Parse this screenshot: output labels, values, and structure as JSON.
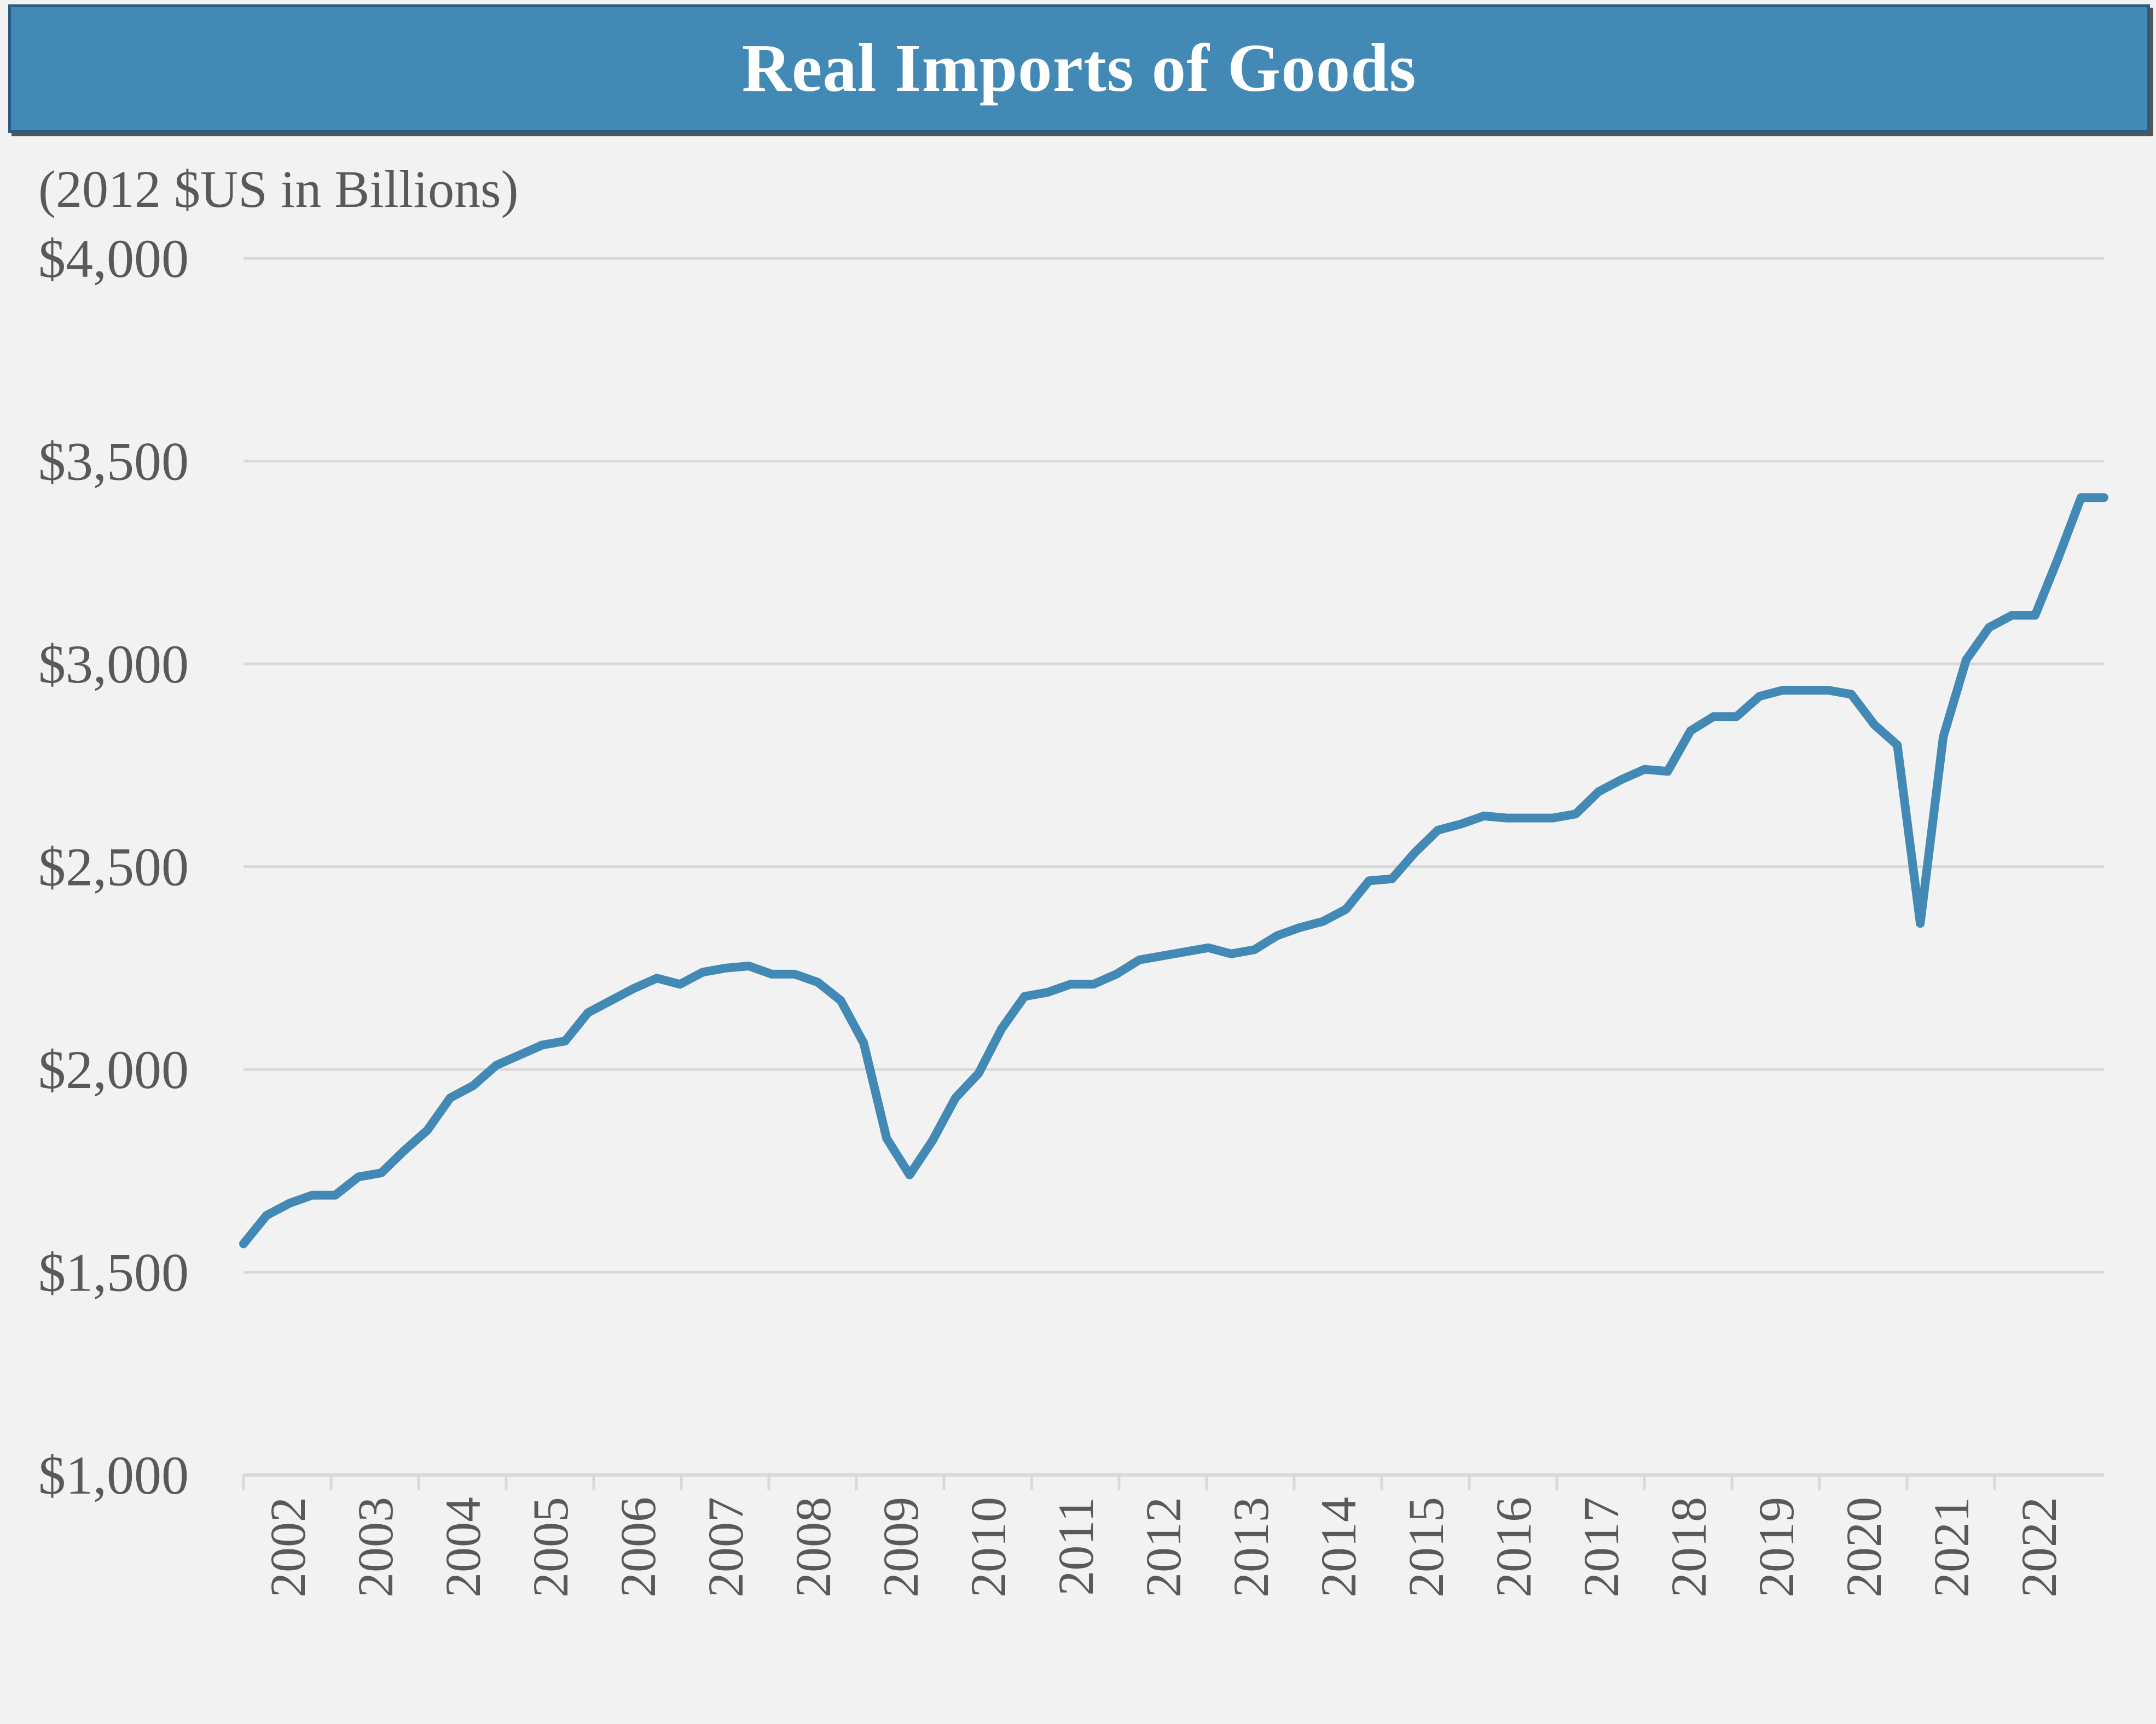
{
  "chart_data": {
    "type": "line",
    "title": "Real Imports of Goods",
    "subtitle": "(2012 $US in Billions)",
    "xlabel": "",
    "ylabel": "",
    "ylim": [
      1000,
      4000
    ],
    "yticks": [
      1000,
      1500,
      2000,
      2500,
      3000,
      3500,
      4000
    ],
    "ytick_labels": [
      "$1,000",
      "$1,500",
      "$2,000",
      "$2,500",
      "$3,000",
      "$3,500",
      "$4,000"
    ],
    "xtick_labels": [
      "2002",
      "2003",
      "2004",
      "2005",
      "2006",
      "2007",
      "2008",
      "2009",
      "2010",
      "2011",
      "2012",
      "2013",
      "2014",
      "2015",
      "2016",
      "2017",
      "2018",
      "2019",
      "2020",
      "2021",
      "2022"
    ],
    "grid": true,
    "line_color": "#4289b5",
    "series": [
      {
        "values": [
          1570,
          1640,
          1670,
          1690,
          1690,
          1735,
          1745,
          1800,
          1850,
          1930,
          1960,
          2010,
          2035,
          2060,
          2070,
          2140,
          2170,
          2200,
          2225,
          2210,
          2240,
          2250,
          2255,
          2235,
          2235,
          2215,
          2170,
          2065,
          1830,
          1740,
          1825,
          1930,
          1990,
          2100,
          2180,
          2190,
          2210,
          2210,
          2235,
          2270,
          2280,
          2290,
          2300,
          2285,
          2295,
          2330,
          2350,
          2365,
          2395,
          2465,
          2470,
          2535,
          2590,
          2605,
          2625,
          2620,
          2620,
          2620,
          2630,
          2685,
          2715,
          2740,
          2735,
          2835,
          2870,
          2870,
          2920,
          2935,
          2935,
          2935,
          2925,
          2850,
          2800,
          2360,
          2820,
          3010,
          3090,
          3120,
          3120,
          3260,
          3410,
          3410
        ]
      }
    ]
  }
}
